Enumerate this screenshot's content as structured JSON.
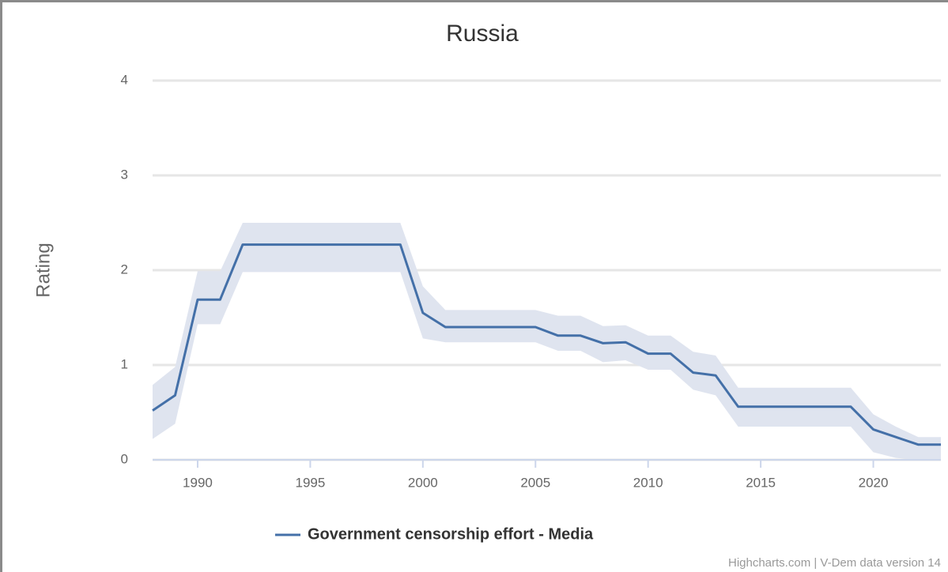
{
  "chart_data": {
    "type": "line",
    "title": "Russia",
    "y_label": "Rating",
    "credits": "Highcharts.com | V-Dem data version 14",
    "x": [
      1988,
      1989,
      1990,
      1991,
      1992,
      1993,
      1994,
      1995,
      1996,
      1997,
      1998,
      1999,
      2000,
      2001,
      2002,
      2003,
      2004,
      2005,
      2006,
      2007,
      2008,
      2009,
      2010,
      2011,
      2012,
      2013,
      2014,
      2015,
      2016,
      2017,
      2018,
      2019,
      2020,
      2021,
      2022,
      2023
    ],
    "series": [
      {
        "name": "Government censorship effort - Media",
        "color": "#4470a8",
        "values": [
          0.52,
          0.68,
          1.69,
          1.69,
          2.27,
          2.27,
          2.27,
          2.27,
          2.27,
          2.27,
          2.27,
          2.27,
          1.55,
          1.4,
          1.4,
          1.4,
          1.4,
          1.4,
          1.31,
          1.31,
          1.23,
          1.24,
          1.12,
          1.12,
          0.92,
          0.89,
          0.56,
          0.56,
          0.56,
          0.56,
          0.56,
          0.56,
          0.32,
          0.24,
          0.16,
          0.16
        ]
      }
    ],
    "range": {
      "color": "#dfe4ef",
      "high": [
        0.79,
        0.98,
        1.99,
        1.99,
        2.5,
        2.5,
        2.5,
        2.5,
        2.5,
        2.5,
        2.5,
        2.5,
        1.83,
        1.58,
        1.58,
        1.58,
        1.58,
        1.58,
        1.52,
        1.52,
        1.41,
        1.42,
        1.31,
        1.31,
        1.14,
        1.1,
        0.76,
        0.76,
        0.76,
        0.76,
        0.76,
        0.76,
        0.48,
        0.35,
        0.24,
        0.24
      ],
      "low": [
        0.22,
        0.38,
        1.43,
        1.43,
        1.98,
        1.98,
        1.98,
        1.98,
        1.98,
        1.98,
        1.98,
        1.98,
        1.28,
        1.24,
        1.24,
        1.24,
        1.24,
        1.24,
        1.15,
        1.15,
        1.03,
        1.05,
        0.95,
        0.95,
        0.74,
        0.68,
        0.35,
        0.35,
        0.35,
        0.35,
        0.35,
        0.35,
        0.08,
        0.02,
        0,
        0
      ]
    },
    "xlim": [
      1988,
      2023
    ],
    "xticks": [
      1990,
      1995,
      2000,
      2005,
      2010,
      2015,
      2020
    ],
    "ylim": [
      0,
      4
    ],
    "yticks": [
      0,
      1,
      2,
      3,
      4
    ],
    "grid": true
  }
}
